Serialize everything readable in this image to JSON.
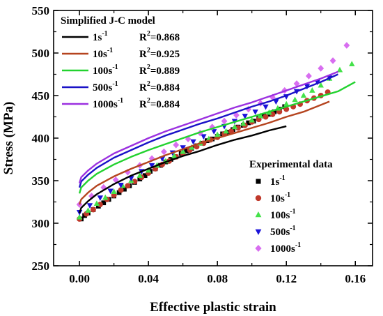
{
  "chart_data": {
    "type": "scatter",
    "xlabel": "Effective plastic strain",
    "ylabel": "Stress (MPa)",
    "xlim": [
      -0.015,
      0.17
    ],
    "ylim": [
      250,
      550
    ],
    "xticks": [
      0.0,
      0.04,
      0.08,
      0.12,
      0.16
    ],
    "xtick_labels": [
      "0.00",
      "0.04",
      "0.08",
      "0.12",
      "0.16"
    ],
    "yticks": [
      250,
      300,
      350,
      400,
      450,
      500,
      550
    ],
    "ytick_labels": [
      "250",
      "300",
      "350",
      "400",
      "450",
      "500",
      "550"
    ],
    "model_legend": {
      "title": "Simplified J-C model",
      "placement": "top-left"
    },
    "experimental_legend": {
      "title": "Experimental data",
      "placement": "center-right"
    },
    "model_series": [
      {
        "name": "1s",
        "name_sup": "-1",
        "r2_label": "R",
        "r2_sup": "2",
        "r2_value": "=0.868",
        "color": "#000000",
        "x": [
          0.0,
          0.001,
          0.005,
          0.01,
          0.02,
          0.03,
          0.04,
          0.05,
          0.06,
          0.07,
          0.08,
          0.09,
          0.1,
          0.11,
          0.12
        ],
        "y": [
          312,
          318,
          326,
          334,
          346,
          356,
          364,
          372,
          379,
          385,
          392,
          398,
          403,
          409,
          414
        ]
      },
      {
        "name": "10s",
        "name_sup": "-1",
        "r2_label": "R",
        "r2_sup": "2",
        "r2_value": "=0.925",
        "color": "#b5441f",
        "x": [
          0.0,
          0.001,
          0.005,
          0.01,
          0.02,
          0.03,
          0.04,
          0.05,
          0.06,
          0.07,
          0.08,
          0.09,
          0.1,
          0.11,
          0.12,
          0.13,
          0.145
        ],
        "y": [
          322,
          328,
          336,
          344,
          355,
          364,
          372,
          380,
          387,
          394,
          400,
          406,
          412,
          418,
          425,
          431,
          443
        ]
      },
      {
        "name": "100s",
        "name_sup": "-1",
        "r2_label": "R",
        "r2_sup": "2",
        "r2_value": "=0.889",
        "color": "#22d22f",
        "x": [
          0.0,
          0.001,
          0.005,
          0.01,
          0.02,
          0.03,
          0.04,
          0.05,
          0.06,
          0.07,
          0.08,
          0.09,
          0.1,
          0.11,
          0.12,
          0.13,
          0.14,
          0.15,
          0.16
        ],
        "y": [
          335,
          342,
          350,
          358,
          369,
          378,
          386,
          393,
          400,
          407,
          413,
          419,
          425,
          431,
          437,
          443,
          449,
          455,
          466
        ]
      },
      {
        "name": "500s",
        "name_sup": "-1",
        "r2_label": "R",
        "r2_sup": "2",
        "r2_value": "=0.884",
        "color": "#1a12c7",
        "x": [
          0.0,
          0.001,
          0.005,
          0.01,
          0.02,
          0.03,
          0.04,
          0.05,
          0.06,
          0.07,
          0.08,
          0.09,
          0.1,
          0.11,
          0.12,
          0.13,
          0.14,
          0.15
        ],
        "y": [
          342,
          349,
          357,
          365,
          377,
          386,
          395,
          403,
          410,
          417,
          423,
          430,
          437,
          443,
          450,
          458,
          466,
          475
        ]
      },
      {
        "name": "1000s",
        "name_sup": "-1",
        "r2_label": "R",
        "r2_sup": "2",
        "r2_value": "=0.884",
        "color": "#9b30e0",
        "x": [
          0.0,
          0.001,
          0.005,
          0.01,
          0.02,
          0.03,
          0.04,
          0.05,
          0.06,
          0.07,
          0.08,
          0.09,
          0.1,
          0.11,
          0.12,
          0.13,
          0.14,
          0.15
        ],
        "y": [
          347,
          354,
          362,
          370,
          382,
          391,
          400,
          408,
          415,
          422,
          429,
          436,
          442,
          449,
          456,
          463,
          470,
          478
        ]
      }
    ],
    "experimental_series": [
      {
        "name": "1s",
        "name_sup": "-1",
        "marker": "square",
        "color": "#000000",
        "x": [
          0.001,
          0.003,
          0.005,
          0.008,
          0.011,
          0.014,
          0.017,
          0.02,
          0.023,
          0.026,
          0.029,
          0.032,
          0.035,
          0.038,
          0.041,
          0.044,
          0.047,
          0.05,
          0.053,
          0.056,
          0.059,
          0.062,
          0.065,
          0.068,
          0.071,
          0.074,
          0.077,
          0.08,
          0.083,
          0.086,
          0.089,
          0.092,
          0.095,
          0.098,
          0.101,
          0.104,
          0.107,
          0.11,
          0.113,
          0.116,
          0.119
        ],
        "y": [
          305,
          309,
          312,
          316,
          320,
          324,
          328,
          332,
          336,
          340,
          344,
          348,
          352,
          356,
          361,
          364,
          368,
          372,
          375,
          378,
          382,
          385,
          388,
          391,
          394,
          397,
          399,
          402,
          405,
          407,
          410,
          413,
          415,
          418,
          420,
          423,
          426,
          428,
          431,
          434,
          437
        ]
      },
      {
        "name": "10s",
        "name_sup": "-1",
        "marker": "circle",
        "color": "#c0392b",
        "x": [
          0.0,
          0.004,
          0.008,
          0.012,
          0.016,
          0.02,
          0.024,
          0.028,
          0.032,
          0.036,
          0.04,
          0.044,
          0.048,
          0.052,
          0.056,
          0.06,
          0.064,
          0.068,
          0.072,
          0.076,
          0.08,
          0.084,
          0.088,
          0.092,
          0.096,
          0.1,
          0.104,
          0.108,
          0.112,
          0.116,
          0.12,
          0.124,
          0.128,
          0.132,
          0.136,
          0.14,
          0.144
        ],
        "y": [
          305,
          311,
          316,
          322,
          328,
          333,
          339,
          344,
          349,
          354,
          359,
          364,
          369,
          373,
          378,
          382,
          386,
          390,
          394,
          398,
          401,
          405,
          408,
          412,
          415,
          419,
          422,
          425,
          428,
          431,
          434,
          437,
          440,
          444,
          447,
          450,
          454
        ]
      },
      {
        "name": "100s",
        "name_sup": "-1",
        "marker": "triangle-up",
        "color": "#44e24a",
        "x": [
          0.0,
          0.005,
          0.01,
          0.015,
          0.02,
          0.025,
          0.03,
          0.035,
          0.04,
          0.045,
          0.05,
          0.055,
          0.06,
          0.065,
          0.07,
          0.075,
          0.08,
          0.085,
          0.09,
          0.095,
          0.1,
          0.105,
          0.11,
          0.115,
          0.12,
          0.125,
          0.13,
          0.135,
          0.14,
          0.145,
          0.151,
          0.158
        ],
        "y": [
          307,
          315,
          323,
          330,
          337,
          344,
          350,
          356,
          362,
          368,
          373,
          379,
          384,
          389,
          394,
          399,
          404,
          408,
          413,
          417,
          421,
          426,
          430,
          435,
          440,
          445,
          450,
          456,
          462,
          470,
          480,
          487
        ]
      },
      {
        "name": "500s",
        "name_sup": "-1",
        "marker": "triangle-down",
        "color": "#1a12d9",
        "x": [
          0.0,
          0.006,
          0.012,
          0.018,
          0.024,
          0.03,
          0.036,
          0.042,
          0.048,
          0.054,
          0.06,
          0.066,
          0.072,
          0.078,
          0.084,
          0.09,
          0.096,
          0.102,
          0.108,
          0.114,
          0.12,
          0.126,
          0.132,
          0.138,
          0.145
        ],
        "y": [
          313,
          321,
          330,
          338,
          345,
          353,
          361,
          368,
          376,
          383,
          389,
          396,
          402,
          408,
          414,
          420,
          426,
          431,
          437,
          443,
          449,
          455,
          461,
          466,
          471
        ]
      },
      {
        "name": "1000s",
        "name_sup": "-1",
        "marker": "diamond",
        "color": "#d86ef0",
        "x": [
          0.0,
          0.007,
          0.014,
          0.021,
          0.028,
          0.035,
          0.042,
          0.049,
          0.056,
          0.063,
          0.07,
          0.077,
          0.084,
          0.091,
          0.098,
          0.105,
          0.112,
          0.119,
          0.126,
          0.133,
          0.14,
          0.147,
          0.155
        ],
        "y": [
          322,
          332,
          342,
          351,
          360,
          368,
          376,
          384,
          392,
          399,
          406,
          413,
          420,
          427,
          434,
          441,
          448,
          456,
          464,
          473,
          482,
          491,
          509
        ]
      }
    ]
  }
}
